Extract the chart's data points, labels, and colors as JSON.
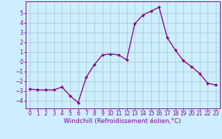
{
  "x": [
    0,
    1,
    2,
    3,
    4,
    5,
    6,
    7,
    8,
    9,
    10,
    11,
    12,
    13,
    14,
    15,
    16,
    17,
    18,
    19,
    20,
    21,
    22,
    23
  ],
  "y": [
    -2.8,
    -2.9,
    -2.9,
    -2.9,
    -2.6,
    -3.5,
    -4.2,
    -1.6,
    -0.3,
    0.7,
    0.8,
    0.7,
    0.2,
    3.9,
    4.8,
    5.2,
    5.6,
    2.5,
    1.2,
    0.1,
    -0.5,
    -1.2,
    -2.2,
    -2.4
  ],
  "line_color": "#8B008B",
  "marker_color": "#8B008B",
  "bg_color": "#cceeff",
  "grid_color": "#aacccc",
  "xlabel": "Windchill (Refroidissement éolien,°C)",
  "xlim": [
    -0.5,
    23.5
  ],
  "ylim": [
    -4.8,
    6.2
  ],
  "yticks": [
    -4,
    -3,
    -2,
    -1,
    0,
    1,
    2,
    3,
    4,
    5
  ],
  "xticks": [
    0,
    1,
    2,
    3,
    4,
    5,
    6,
    7,
    8,
    9,
    10,
    11,
    12,
    13,
    14,
    15,
    16,
    17,
    18,
    19,
    20,
    21,
    22,
    23
  ],
  "font_color": "#8B008B",
  "tick_label_fontsize": 5.5,
  "xlabel_fontsize": 6.5,
  "line_width": 1.0,
  "marker_size": 2.0
}
